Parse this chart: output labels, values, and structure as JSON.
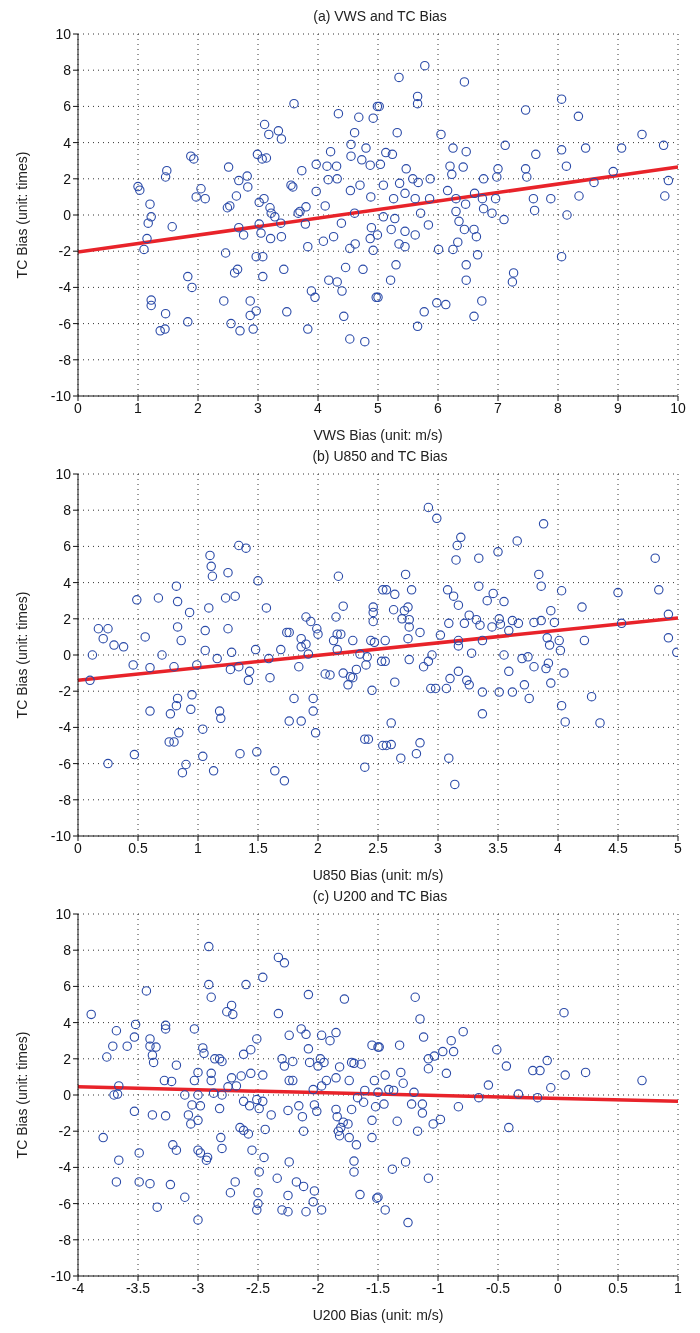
{
  "chart_data": [
    {
      "type": "scatter",
      "title": "(a) VWS and TC Bias",
      "xlabel": "VWS Bias (unit: m/s)",
      "ylabel": "TC Bias (unit: times)",
      "xlim": [
        0,
        10
      ],
      "xticks": [
        0,
        1,
        2,
        3,
        4,
        5,
        6,
        7,
        8,
        9,
        10
      ],
      "ylim": [
        -10,
        10
      ],
      "yticks": [
        -10,
        -8,
        -6,
        -4,
        -2,
        0,
        2,
        4,
        6,
        8,
        10
      ],
      "grid": true,
      "series": [
        {
          "type": "scatter",
          "marker": "circle",
          "color": "#2a4aa8",
          "x": [
            1.0,
            1.03,
            1.2,
            1.22,
            1.17,
            1.15,
            1.1,
            1.22,
            1.22,
            1.46,
            1.37,
            1.45,
            1.46,
            1.48,
            1.57,
            1.88,
            1.93,
            1.97,
            2.05,
            2.12,
            1.83,
            1.9,
            1.83,
            2.51,
            2.49,
            2.53,
            2.64,
            2.68,
            2.82,
            2.83,
            2.46,
            2.61,
            2.66,
            2.43,
            2.55,
            2.7,
            2.68,
            2.76,
            2.87,
            2.87,
            2.97,
            2.92,
            2.99,
            3.07,
            3.14,
            3.02,
            3.1,
            3.02,
            3.05,
            2.97,
            3.08,
            3.08,
            3.11,
            3.18,
            3.2,
            3.22,
            3.28,
            3.21,
            3.34,
            3.39,
            3.38,
            3.39,
            3.43,
            3.48,
            3.6,
            3.55,
            3.58,
            3.67,
            3.7,
            3.73,
            3.8,
            3.79,
            3.83,
            3.83,
            3.89,
            3.95,
            3.97,
            3.97,
            4.12,
            4.09,
            4.15,
            4.17,
            4.21,
            4.18,
            4.26,
            4.31,
            4.32,
            4.32,
            4.34,
            4.39,
            4.4,
            4.43,
            4.46,
            4.53,
            4.53,
            4.54,
            4.55,
            4.55,
            4.61,
            4.61,
            4.62,
            4.68,
            4.7,
            4.73,
            4.75,
            4.78,
            4.8,
            4.87,
            4.88,
            4.89,
            4.87,
            4.92,
            4.92,
            4.97,
            4.99,
            4.99,
            5.78,
            5.35,
            6.44,
            5.66,
            5.66,
            5.02,
            5.32,
            6.05,
            6.25,
            6.47,
            7.12,
            8.06,
            7.46,
            8.34,
            9.4,
            9.76,
            9.06,
            8.46,
            8.06,
            7.63,
            8.14,
            8.92,
            9.84,
            9.78,
            8.6,
            8.35,
            7.88,
            7.59,
            7.61,
            8.15,
            8.06,
            7.46,
            7.48,
            7.0,
            6.98,
            6.76,
            6.96,
            6.9,
            7.1,
            6.76,
            6.74,
            6.61,
            6.46,
            6.3,
            6.16,
            6.2,
            6.23,
            6.42,
            6.3,
            6.35,
            6.44,
            6.6,
            6.64,
            6.33,
            6.25,
            6.01,
            6.66,
            6.47,
            6.47,
            7.26,
            7.24,
            6.73,
            5.98,
            6.13,
            6.6,
            5.77,
            5.66,
            5.21,
            5.3,
            5.0,
            5.45,
            5.35,
            5.62,
            5.45,
            5.22,
            5.09,
            5.28,
            5.71,
            5.84,
            5.62,
            5.26,
            5.86,
            5.09,
            5.45,
            5.36,
            5.47,
            5.58,
            5.67,
            5.87,
            5.04,
            5.13,
            5.24
          ],
          "values": [
            1.57,
            1.37,
            0.6,
            -0.1,
            -0.45,
            -1.3,
            -1.9,
            -4.7,
            -5.0,
            -5.45,
            -6.4,
            -6.3,
            2.1,
            2.45,
            -0.65,
            3.25,
            3.1,
            1.0,
            1.45,
            0.9,
            -3.4,
            -4.0,
            -5.9,
            2.65,
            0.4,
            0.5,
            1.05,
            1.9,
            2.15,
            1.55,
            -2.1,
            -3.2,
            -3.0,
            -4.75,
            -6.0,
            -6.4,
            -0.7,
            -1.1,
            -4.75,
            -5.55,
            -5.3,
            -6.3,
            3.35,
            3.1,
            3.15,
            0.7,
            0.9,
            -0.5,
            -1.0,
            -2.3,
            -2.3,
            -3.4,
            5.0,
            4.45,
            0.4,
            0.1,
            -0.1,
            -1.3,
            4.65,
            4.2,
            -0.45,
            -1.2,
            -3.0,
            -5.35,
            6.15,
            1.65,
            1.55,
            0.1,
            0.2,
            2.45,
            0.45,
            -0.5,
            -1.75,
            -6.3,
            -4.2,
            -4.55,
            2.8,
            1.3,
            0.5,
            -1.45,
            2.7,
            1.95,
            3.5,
            -3.6,
            -1.2,
            2.7,
            2.0,
            -3.7,
            5.6,
            -0.45,
            -4.2,
            -5.6,
            -2.9,
            -6.85,
            -1.85,
            1.35,
            3.9,
            3.25,
            4.55,
            0.1,
            -1.6,
            5.4,
            1.65,
            3.05,
            -3.0,
            -7.0,
            3.7,
            2.75,
            1.0,
            -0.7,
            -1.3,
            5.35,
            -1.95,
            -4.55,
            6.0,
            -1.1,
            8.25,
            7.6,
            7.35,
            6.55,
            6.15,
            6.0,
            4.55,
            4.45,
            3.7,
            3.5,
            3.85,
            6.4,
            5.8,
            5.45,
            4.45,
            3.85,
            3.7,
            3.7,
            3.6,
            3.35,
            2.7,
            2.4,
            1.9,
            1.05,
            1.8,
            1.05,
            0.9,
            0.9,
            0.25,
            0.0,
            -2.3,
            2.55,
            2.1,
            2.55,
            2.1,
            2.0,
            0.9,
            0.1,
            -0.25,
            0.35,
            0.9,
            1.2,
            0.6,
            0.9,
            1.35,
            2.7,
            2.25,
            2.65,
            0.2,
            -0.35,
            -0.8,
            -0.8,
            -1.2,
            -1.5,
            -1.9,
            -1.9,
            -2.2,
            -2.75,
            -3.6,
            -3.2,
            -3.7,
            -4.75,
            -4.85,
            -4.95,
            -5.6,
            -5.35,
            -6.15,
            -3.6,
            -2.75,
            -4.55,
            -1.75,
            -1.6,
            -1.1,
            -0.9,
            -0.8,
            -0.1,
            -0.2,
            0.1,
            -0.55,
            0.9,
            0.9,
            0.9,
            1.65,
            1.2,
            1.75,
            2.55,
            2.0,
            1.8,
            2.0,
            2.8,
            3.45,
            3.35
          ]
        },
        {
          "type": "line",
          "marker": "none",
          "color": "#e8232a",
          "x": [
            0,
            10
          ],
          "values": [
            -2.05,
            2.65
          ]
        }
      ]
    },
    {
      "type": "scatter",
      "title": "(b) U850 and TC Bias",
      "xlabel": "U850 Bias (unit: m/s)",
      "ylabel": "TC Bias (unit: times)",
      "xlim": [
        0,
        5
      ],
      "xticks": [
        0,
        0.5,
        1,
        1.5,
        2,
        2.5,
        3,
        3.5,
        4,
        4.5,
        5
      ],
      "ylim": [
        -10,
        10
      ],
      "yticks": [
        -10,
        -8,
        -6,
        -4,
        -2,
        0,
        2,
        4,
        6,
        8,
        10
      ],
      "grid": true,
      "series": [
        {
          "type": "scatter",
          "marker": "circle",
          "color": "#2a4aa8",
          "x": [
            0.1,
            0.12,
            0.17,
            0.25,
            0.21,
            0.3,
            0.38,
            0.25,
            0.46,
            0.47,
            0.49,
            0.56,
            0.6,
            0.6,
            0.67,
            0.7,
            0.77,
            0.76,
            0.8,
            0.8,
            0.82,
            0.83,
            0.83,
            0.83,
            0.82,
            0.84,
            0.86,
            0.87,
            0.9,
            0.93,
            0.94,
            0.95,
            0.99,
            1.04,
            1.04,
            1.06,
            1.06,
            1.09,
            1.1,
            1.11,
            1.12,
            1.13,
            1.16,
            1.18,
            1.19,
            1.23,
            1.25,
            1.25,
            1.27,
            1.28,
            1.31,
            1.34,
            1.34,
            1.4,
            1.35,
            1.42,
            1.43,
            1.48,
            1.49,
            1.5,
            1.57,
            1.59,
            1.6,
            1.64,
            1.69,
            1.72,
            1.74,
            1.76,
            1.76,
            1.8,
            1.84,
            1.86,
            1.86,
            1.86,
            1.9,
            1.9,
            1.92,
            1.94,
            1.96,
            1.96,
            1.98,
            1.99,
            2.0,
            2.06,
            2.1,
            2.13,
            2.15,
            2.16,
            2.16,
            2.17,
            2.19,
            2.21,
            2.21,
            2.25,
            2.27,
            2.29,
            2.29,
            2.32,
            2.35,
            2.39,
            2.42,
            2.39,
            2.4,
            2.41,
            2.44,
            2.45,
            2.46,
            2.46,
            2.46,
            2.47,
            2.54,
            2.53,
            2.54,
            2.92,
            2.99,
            3.88,
            3.66,
            3.19,
            3.16,
            3.15,
            3.34,
            3.5,
            4.81,
            3.84,
            3.86,
            2.73,
            2.57,
            2.64,
            2.78,
            3.08,
            3.13,
            3.34,
            3.46,
            3.41,
            3.55,
            3.17,
            2.63,
            2.72,
            2.75,
            2.7,
            2.76,
            2.76,
            2.85,
            2.75,
            2.56,
            3.02,
            3.09,
            3.22,
            3.26,
            3.32,
            3.35,
            3.45,
            3.51,
            3.52,
            3.59,
            3.62,
            3.67,
            3.8,
            3.86,
            3.94,
            3.97,
            4.03,
            4.2,
            4.5,
            4.53,
            4.84,
            4.92,
            4.92,
            4.99,
            4.22,
            3.91,
            3.93,
            4.01,
            4.02,
            4.05,
            3.92,
            3.9,
            3.94,
            3.8,
            3.76,
            3.72,
            3.75,
            3.7,
            3.59,
            3.55,
            3.62,
            3.51,
            3.37,
            3.37,
            3.37,
            3.28,
            3.17,
            3.17,
            3.17,
            3.24,
            3.26,
            3.1,
            3.07,
            2.98,
            2.94,
            2.95,
            2.92,
            2.88,
            2.76,
            2.56,
            2.64,
            4.03,
            4.06,
            4.28,
            4.35,
            2.61,
            2.57,
            2.61,
            2.85,
            2.82,
            2.69,
            3.09,
            3.14
          ],
          "values": [
            -1.4,
            0.0,
            1.45,
            1.45,
            0.9,
            0.55,
            0.45,
            -6.0,
            -0.55,
            -5.5,
            3.05,
            1.0,
            -0.7,
            -3.1,
            3.15,
            0.0,
            -3.25,
            -4.8,
            -4.8,
            -0.65,
            3.8,
            2.95,
            1.55,
            -2.4,
            -2.8,
            -4.3,
            0.8,
            -6.5,
            -6.05,
            2.35,
            -3.0,
            -2.2,
            -0.55,
            -4.1,
            -5.6,
            0.25,
            1.35,
            2.6,
            5.5,
            4.9,
            4.35,
            -6.4,
            -0.2,
            -3.1,
            -3.5,
            3.15,
            4.55,
            1.45,
            -0.8,
            0.15,
            3.25,
            -0.65,
            6.05,
            5.9,
            -5.45,
            -1.4,
            -0.9,
            0.3,
            -5.35,
            4.1,
            2.6,
            -0.2,
            -1.25,
            -6.4,
            0.3,
            -6.95,
            1.25,
            1.25,
            -3.65,
            -2.4,
            -0.65,
            0.9,
            0.45,
            -3.65,
            2.1,
            0.6,
            0.05,
            1.85,
            -2.4,
            -3.1,
            -4.3,
            1.45,
            1.15,
            -1.05,
            -1.1,
            0.8,
            2.1,
            1.15,
            0.3,
            4.35,
            1.15,
            2.7,
            -1.0,
            -1.65,
            -1.2,
            -1.25,
            0.8,
            -0.8,
            0.05,
            -4.65,
            -4.65,
            -6.2,
            -0.55,
            -0.1,
            0.8,
            -1.95,
            2.65,
            2.35,
            1.85,
            0.7,
            3.6,
            -0.35,
            -5.0,
            8.15,
            7.55,
            7.25,
            6.3,
            6.5,
            6.05,
            5.25,
            5.35,
            5.7,
            5.35,
            4.45,
            3.8,
            4.45,
            3.6,
            3.35,
            3.6,
            3.6,
            3.25,
            3.8,
            3.4,
            3.0,
            2.95,
            2.75,
            2.5,
            2.45,
            2.65,
            2.0,
            1.95,
            1.55,
            1.25,
            0.9,
            0.8,
            1.1,
            1.75,
            1.75,
            2.2,
            1.95,
            1.65,
            1.55,
            2.0,
            1.7,
            1.35,
            1.9,
            1.75,
            1.8,
            1.9,
            2.45,
            1.8,
            3.55,
            2.65,
            3.45,
            1.75,
            3.6,
            2.25,
            0.95,
            0.15,
            0.8,
            0.95,
            0.55,
            0.8,
            0.25,
            -1.0,
            -0.45,
            -0.75,
            -1.55,
            -0.65,
            -2.4,
            -1.65,
            -0.1,
            -0.2,
            -0.9,
            0.0,
            -2.05,
            -2.05,
            0.8,
            -2.05,
            -3.25,
            0.1,
            0.8,
            0.5,
            -0.9,
            -1.4,
            -1.65,
            -1.3,
            -1.85,
            -1.85,
            -1.85,
            0.0,
            -0.35,
            -0.65,
            -0.25,
            -0.35,
            -1.5,
            -2.8,
            -3.7,
            -2.3,
            -3.75,
            -3.75,
            -5.0,
            -4.95,
            -4.85,
            -5.45,
            -5.7,
            -5.7,
            -7.15
          ]
        },
        {
          "type": "line",
          "marker": "none",
          "color": "#e8232a",
          "x": [
            0,
            5
          ],
          "values": [
            -1.4,
            2.05
          ]
        }
      ]
    },
    {
      "type": "scatter",
      "title": "(c) U200 and TC Bias",
      "xlabel": "U200 Bias (unit: m/s)",
      "ylabel": "TC Bias (unit: times)",
      "xlim": [
        -4,
        1
      ],
      "xticks": [
        -4,
        -3.5,
        -3,
        -2.5,
        -2,
        -1.5,
        -1,
        -0.5,
        0,
        0.5,
        1
      ],
      "ylim": [
        -10,
        10
      ],
      "yticks": [
        -10,
        -8,
        -6,
        -4,
        -2,
        0,
        2,
        4,
        6,
        8,
        10
      ],
      "grid": true,
      "series": [
        {
          "type": "scatter",
          "marker": "circle",
          "color": "#2a4aa8",
          "x": [
            -3.89,
            -3.76,
            -3.68,
            -3.71,
            -3.7,
            -3.67,
            -3.66,
            -3.79,
            -3.66,
            -3.68,
            -3.59,
            -3.53,
            -3.52,
            -3.53,
            -3.49,
            -3.49,
            -3.43,
            -3.4,
            -3.4,
            -3.35,
            -3.38,
            -3.37,
            -3.38,
            -3.4,
            -3.34,
            -3.27,
            -3.27,
            -3.28,
            -3.27,
            -3.23,
            -3.22,
            -3.21,
            -3.18,
            -3.18,
            -3.11,
            -3.11,
            -3.08,
            -3.06,
            -3.05,
            -3.03,
            -3.03,
            -3.0,
            -3.0,
            -3.0,
            -3.0,
            -2.98,
            -3.0,
            -2.98,
            -2.96,
            -2.95,
            -2.93,
            -2.92,
            -2.91,
            -2.91,
            -2.89,
            -2.89,
            -2.89,
            -2.87,
            -2.86,
            -2.82,
            -2.8,
            -2.82,
            -2.81,
            -2.8,
            -2.8,
            -2.76,
            -2.72,
            -2.71,
            -2.72,
            -2.68,
            -2.75,
            -2.73,
            -2.69,
            -2.65,
            -2.62,
            -2.58,
            -2.62,
            -2.6,
            -2.62,
            -2.64,
            -2.56,
            -2.56,
            -2.57,
            -2.55,
            -2.51,
            -2.51,
            -2.49,
            -2.46,
            -2.46,
            -2.44,
            -2.45,
            -2.49,
            -2.5,
            -2.5,
            -2.51,
            -2.46,
            -2.39,
            -2.34,
            -2.33,
            -2.28,
            -2.33,
            -2.24,
            -2.3,
            -2.28,
            -2.21,
            -2.24,
            -2.21,
            -2.25,
            -2.24,
            -2.25,
            -2.3,
            -2.25,
            -2.18,
            -2.16,
            -2.14,
            -2.13,
            -2.12,
            -2.12,
            -2.1,
            -2.1,
            -2.08,
            -2.08,
            -2.07,
            -2.04,
            -2.03,
            -2.01,
            -2.03,
            -2.04,
            -1.97,
            -2.0,
            -1.98,
            -1.95,
            -1.97,
            -1.97,
            -1.93,
            -1.9,
            -1.85,
            -1.85,
            -1.85,
            -1.84,
            -1.83,
            -1.82,
            -1.81,
            -1.79,
            -1.75,
            -1.82,
            -1.78,
            -1.74,
            -1.74,
            -1.72,
            -1.7,
            -1.64,
            -1.72,
            -1.68,
            -1.7,
            -1.7,
            -1.65,
            -1.67,
            -1.62,
            -1.61,
            -1.55,
            -1.53,
            -1.55,
            -1.55,
            -1.52,
            -1.51,
            -1.5,
            -1.5,
            -1.19,
            -1.15,
            -1.12,
            -1.32,
            -1.49,
            -0.89,
            -0.79,
            -0.96,
            -0.87,
            -1.03,
            -1.08,
            -1.08,
            -1.31,
            -1.44,
            -1.29,
            -0.93,
            -0.51,
            -0.43,
            -0.21,
            -0.15,
            -0.09,
            -0.58,
            -0.66,
            -0.33,
            -0.17,
            -0.06,
            0.06,
            0.23,
            0.05,
            0.7,
            -1.2,
            -1.41,
            -1.37,
            -1.22,
            -1.13,
            -1.13,
            -1.45,
            -1.34,
            -1.17,
            -1.04,
            -0.98,
            -0.83,
            -0.41,
            -1.27,
            -1.38,
            -1.08,
            -1.5,
            -1.44,
            -1.25
          ],
          "values": [
            4.45,
            2.1,
            3.55,
            2.7,
            0.0,
            0.05,
            0.5,
            -2.35,
            -3.6,
            -4.8,
            2.7,
            3.2,
            3.9,
            -0.9,
            -3.2,
            -4.8,
            5.75,
            3.1,
            2.7,
            2.65,
            2.2,
            1.8,
            -1.1,
            -4.9,
            -6.2,
            3.85,
            3.65,
            0.8,
            -1.15,
            -4.95,
            0.75,
            -2.75,
            -3.05,
            1.65,
            0.0,
            -5.65,
            -1.1,
            -1.6,
            -0.55,
            0.8,
            3.65,
            1.25,
            -6.9,
            -1.4,
            0.0,
            -0.6,
            -3.05,
            -3.2,
            2.6,
            2.3,
            -3.6,
            -3.45,
            8.2,
            6.1,
            5.4,
            1.2,
            0.8,
            0.1,
            2.0,
            2.0,
            1.85,
            -0.75,
            -2.35,
            -2.95,
            0.0,
            4.6,
            4.95,
            4.45,
            0.95,
            0.5,
            0.45,
            -5.4,
            -4.8,
            -1.8,
            -1.95,
            -2.15,
            -0.35,
            6.1,
            2.25,
            1.05,
            2.5,
            1.2,
            -0.6,
            -3.05,
            3.1,
            -0.25,
            -0.75,
            1.1,
            -0.35,
            -1.9,
            -3.45,
            -4.25,
            -5.4,
            -6.0,
            -6.35,
            6.5,
            -1.1,
            -4.6,
            7.6,
            7.3,
            4.5,
            3.3,
            2.0,
            1.6,
            1.85,
            0.8,
            0.8,
            -0.85,
            -3.7,
            -5.55,
            -6.35,
            -6.45,
            -4.8,
            -0.6,
            3.65,
            -1.2,
            -2.0,
            -5.05,
            3.35,
            -6.45,
            5.55,
            2.55,
            1.8,
            0.3,
            -0.55,
            -0.9,
            -5.3,
            -5.9,
            -6.35,
            1.6,
            2.0,
            1.8,
            3.3,
            0.5,
            0.8,
            3.0,
            3.45,
            0.95,
            -0.8,
            -1.2,
            -2.0,
            -2.25,
            -1.8,
            -1.5,
            -1.6,
            1.55,
            5.3,
            0.8,
            -2.35,
            1.8,
            1.75,
            1.7,
            -0.8,
            -2.75,
            -3.65,
            -4.25,
            -5.5,
            -0.15,
            -0.4,
            0.25,
            2.75,
            0.8,
            -1.4,
            -2.35,
            -0.65,
            -5.7,
            2.65,
            0.15,
            5.4,
            4.2,
            3.2,
            2.75,
            2.65,
            3.0,
            3.5,
            2.4,
            2.4,
            2.15,
            2.0,
            1.45,
            1.25,
            1.1,
            0.65,
            1.2,
            2.5,
            1.6,
            1.35,
            1.35,
            1.9,
            0.55,
            -0.15,
            0.05,
            -0.15,
            0.4,
            1.1,
            1.25,
            4.55,
            0.8,
            0.15,
            0.3,
            0.25,
            -0.5,
            -0.5,
            -1.0,
            -0.5,
            -1.45,
            -2.0,
            -1.6,
            -1.35,
            -0.65,
            -1.8,
            -3.7,
            -4.1,
            -4.6,
            -5.65,
            -6.35,
            -7.05
          ]
        },
        {
          "type": "line",
          "marker": "none",
          "color": "#e8232a",
          "x": [
            -4,
            1
          ],
          "values": [
            0.45,
            -0.35
          ]
        }
      ]
    }
  ]
}
